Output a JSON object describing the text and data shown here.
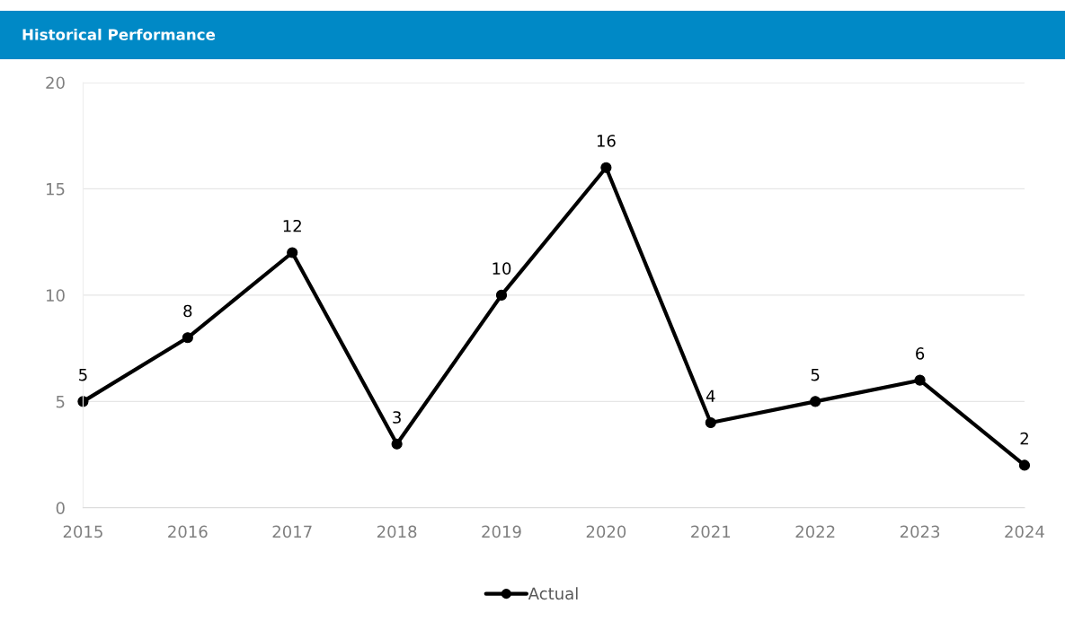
{
  "chart_data": {
    "type": "line",
    "title": "Historical Performance",
    "categories": [
      "2015",
      "2016",
      "2017",
      "2018",
      "2019",
      "2020",
      "2021",
      "2022",
      "2023",
      "2024"
    ],
    "series": [
      {
        "name": "Actual",
        "color": "#000000",
        "values": [
          5,
          8,
          12,
          3,
          10,
          16,
          4,
          5,
          6,
          2
        ]
      }
    ],
    "ylim": [
      0,
      20
    ],
    "yticks": [
      0,
      5,
      10,
      15,
      20
    ],
    "grid": "y",
    "legend": "bottom",
    "marker": "circle",
    "line_style": "solid",
    "data_labels": true
  }
}
